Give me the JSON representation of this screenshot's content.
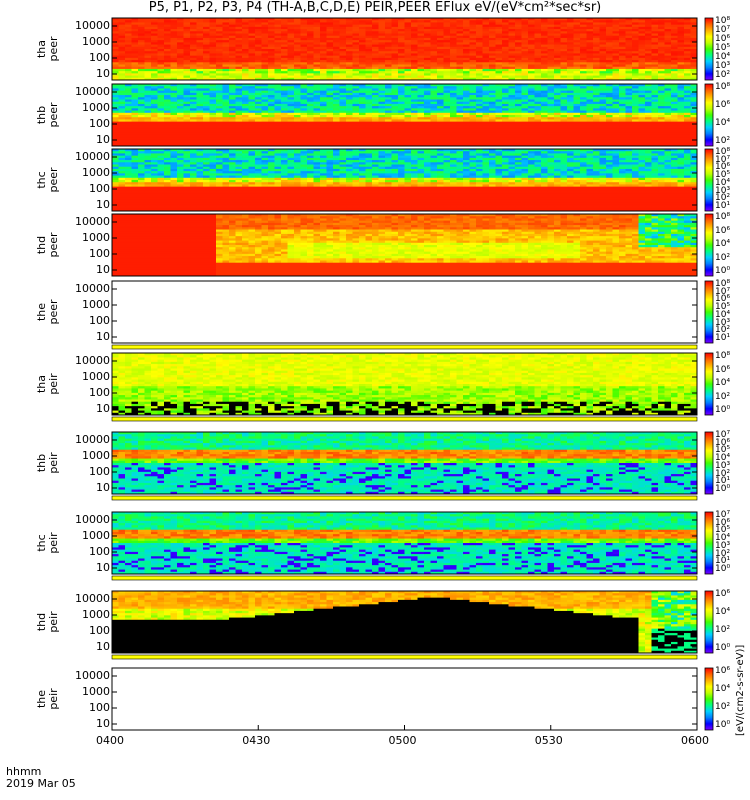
{
  "title": "P5, P1, P2, P3, P4 (TH-A,B,C,D,E) PEIR,PEER EFlux eV/(eV*cm²*sec*sr)",
  "footer": {
    "line1": "hhmm",
    "line2": "2019 Mar 05"
  },
  "colorbar_unit_label": "[eV/(cm2-s-sr-eV)]",
  "colorbar_colors": [
    "#7f00ff",
    "#0000ff",
    "#0080ff",
    "#00d0ff",
    "#00ff80",
    "#40ff00",
    "#c0ff00",
    "#ffff00",
    "#ffb000",
    "#ff6000",
    "#ff0000"
  ],
  "chart_data": {
    "type": "heatmap",
    "x_axis": {
      "label": "hhmm",
      "ticks": [
        "0400",
        "0430",
        "0500",
        "0530",
        "0600"
      ],
      "range": [
        "04:00",
        "06:00"
      ]
    },
    "y_scale": "log",
    "panels": [
      {
        "probe": "tha",
        "species": "peer",
        "y_ticks": [
          "10000",
          "1000",
          "100",
          "10"
        ],
        "colorbar_ticks": [
          "10⁸",
          "10⁷",
          "10⁶",
          "10⁵",
          "10⁴",
          "10³",
          "10²"
        ],
        "description": "saturated"
      },
      {
        "probe": "thb",
        "species": "peer",
        "y_ticks": [
          "10000",
          "1000",
          "100",
          "10"
        ],
        "colorbar_ticks": [
          "10⁸",
          "10⁶",
          "10⁴",
          "10²"
        ],
        "description": "banded"
      },
      {
        "probe": "thc",
        "species": "peer",
        "y_ticks": [
          "10000",
          "1000",
          "100",
          "10"
        ],
        "colorbar_ticks": [
          "10⁸",
          "10⁷",
          "10⁶",
          "10⁵",
          "10⁴",
          "10³",
          "10²",
          "10¹"
        ],
        "description": "banded"
      },
      {
        "probe": "thd",
        "species": "peer",
        "y_ticks": [
          "10000",
          "1000",
          "100",
          "10"
        ],
        "colorbar_ticks": [
          "10⁸",
          "10⁶",
          "10⁴",
          "10²",
          "10⁰"
        ],
        "description": "dynamic"
      },
      {
        "probe": "the",
        "species": "peer",
        "y_ticks": [
          "10000",
          "1000",
          "100",
          "10"
        ],
        "colorbar_ticks": [
          "10⁸",
          "10⁷",
          "10⁶",
          "10⁵",
          "10⁴",
          "10³",
          "10²",
          "10¹"
        ],
        "description": "empty"
      },
      {
        "probe": "tha",
        "species": "peir",
        "y_ticks": [
          "10000",
          "1000",
          "100",
          "10"
        ],
        "colorbar_ticks": [
          "10⁸",
          "10⁶",
          "10⁴",
          "10²",
          "10⁰"
        ],
        "description": "ion"
      },
      {
        "probe": "thb",
        "species": "peir",
        "y_ticks": [
          "10000",
          "1000",
          "100",
          "10"
        ],
        "colorbar_ticks": [
          "10⁷",
          "10⁶",
          "10⁵",
          "10⁴",
          "10³",
          "10²",
          "10¹",
          "10⁰"
        ],
        "description": "ion-banded"
      },
      {
        "probe": "thc",
        "species": "peir",
        "y_ticks": [
          "10000",
          "1000",
          "100",
          "10"
        ],
        "colorbar_ticks": [
          "10⁷",
          "10⁶",
          "10⁵",
          "10⁴",
          "10³",
          "10²",
          "10¹",
          "10⁰"
        ],
        "description": "ion-banded"
      },
      {
        "probe": "thd",
        "species": "peir",
        "y_ticks": [
          "10000",
          "1000",
          "100",
          "10"
        ],
        "colorbar_ticks": [
          "10⁶",
          "10⁴",
          "10²",
          "10⁰"
        ],
        "description": "ion-dynamic"
      },
      {
        "probe": "the",
        "species": "peir",
        "y_ticks": [
          "10000",
          "1000",
          "100",
          "10"
        ],
        "colorbar_ticks": [
          "10⁶",
          "10⁴",
          "10²",
          "10⁰"
        ],
        "description": "empty"
      }
    ]
  }
}
